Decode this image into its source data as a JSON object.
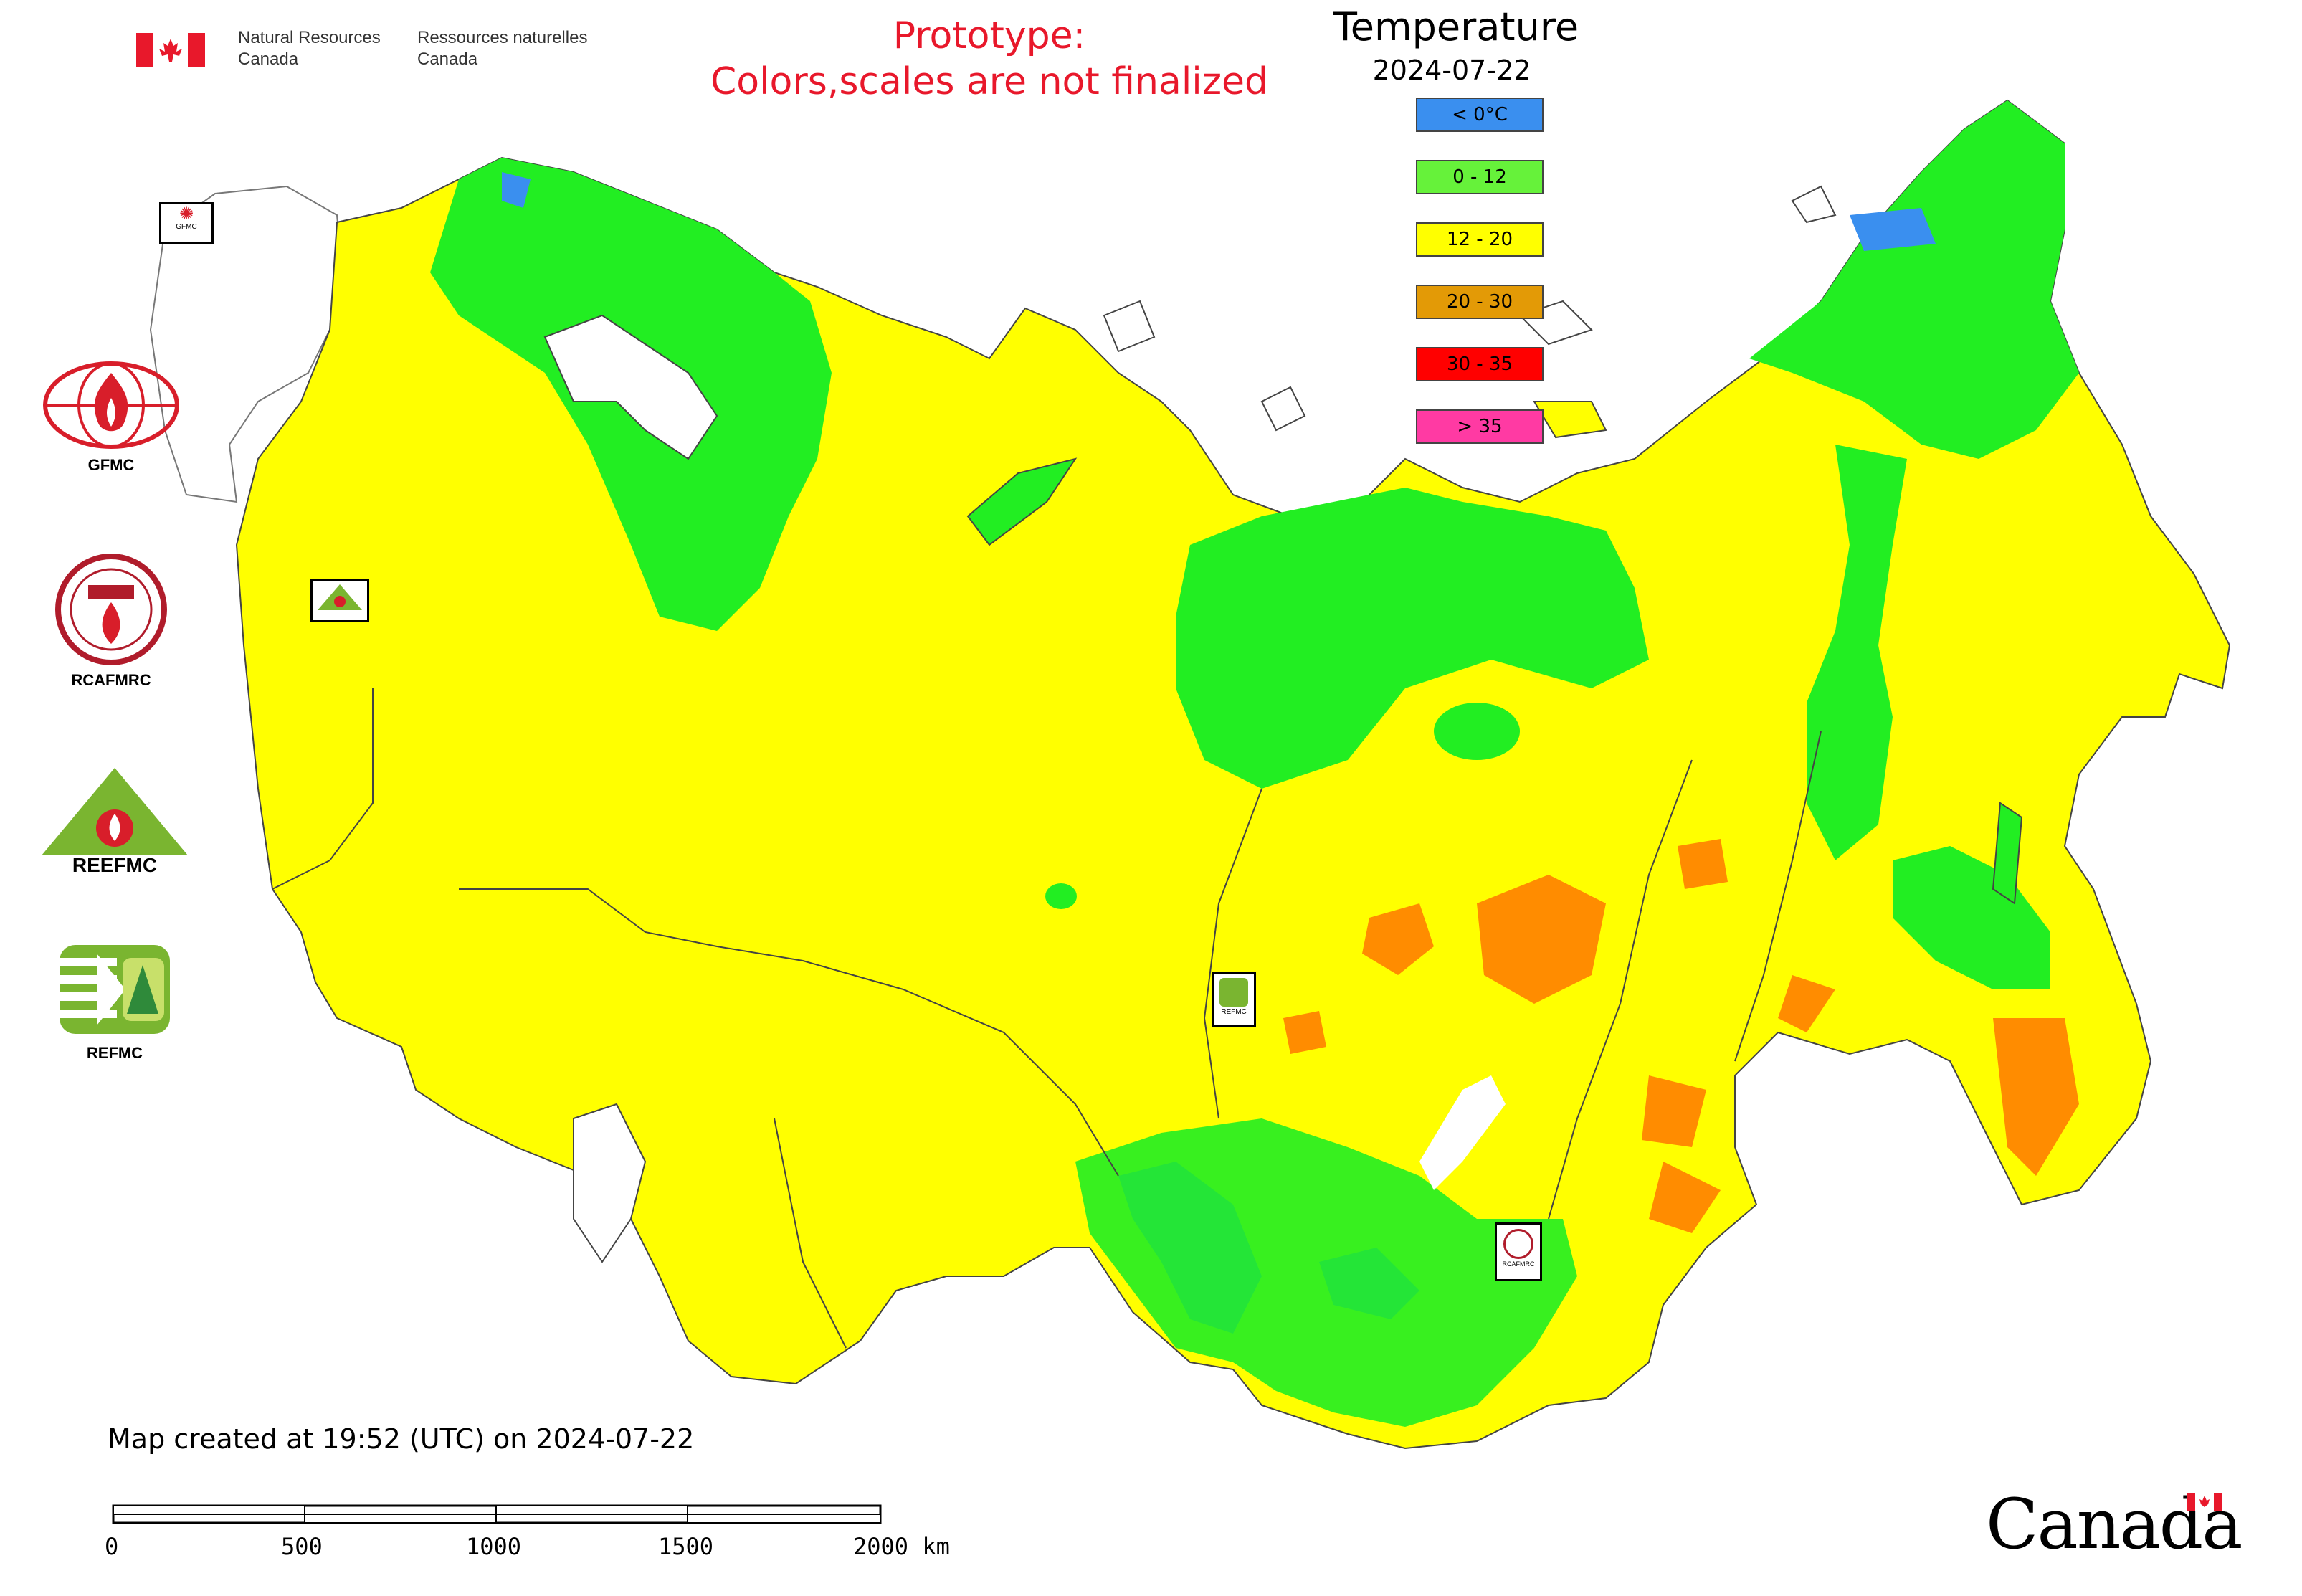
{
  "header": {
    "dept_en_line1": "Natural Resources",
    "dept_en_line2": "Canada",
    "dept_fr_line1": "Ressources naturelles",
    "dept_fr_line2": "Canada",
    "prototype_line1": "Prototype:",
    "prototype_line2": "Colors,scales are not finalized"
  },
  "legend": {
    "title": "Temperature",
    "date": "2024-07-22",
    "classes": [
      {
        "label": "< 0°C",
        "color": "#3a8fef"
      },
      {
        "label": "0 - 12",
        "color": "#66f23a"
      },
      {
        "label": "12 - 20",
        "color": "#ffff00"
      },
      {
        "label": "20 - 30",
        "color": "#e39a06"
      },
      {
        "label": "30 - 35",
        "color": "#ff0000"
      },
      {
        "label": "> 35",
        "color": "#ff3aa3"
      }
    ]
  },
  "logos": {
    "gfmc": "GFMC",
    "rcafmrc": "RCAFMRC",
    "reefmc_label": "REFMC",
    "reefmc_banner": "REEFMC"
  },
  "map_markers": {
    "gfmc_small": "GFMC",
    "rcafmrc_small": "RCAFMRC",
    "refmc_small": "REFMC"
  },
  "footer": {
    "created": "Map created at 19:52 (UTC) on 2024-07-22",
    "scale_labels": [
      "0",
      "500",
      "1000",
      "1500",
      "2000 km"
    ],
    "wordmark": "Canada"
  },
  "colors": {
    "land_base": "#ffff00",
    "cool": "#22ee22",
    "cold": "#3a8fef",
    "warm": "#ff8c00",
    "water": "#ffffff",
    "border": "#444444"
  }
}
